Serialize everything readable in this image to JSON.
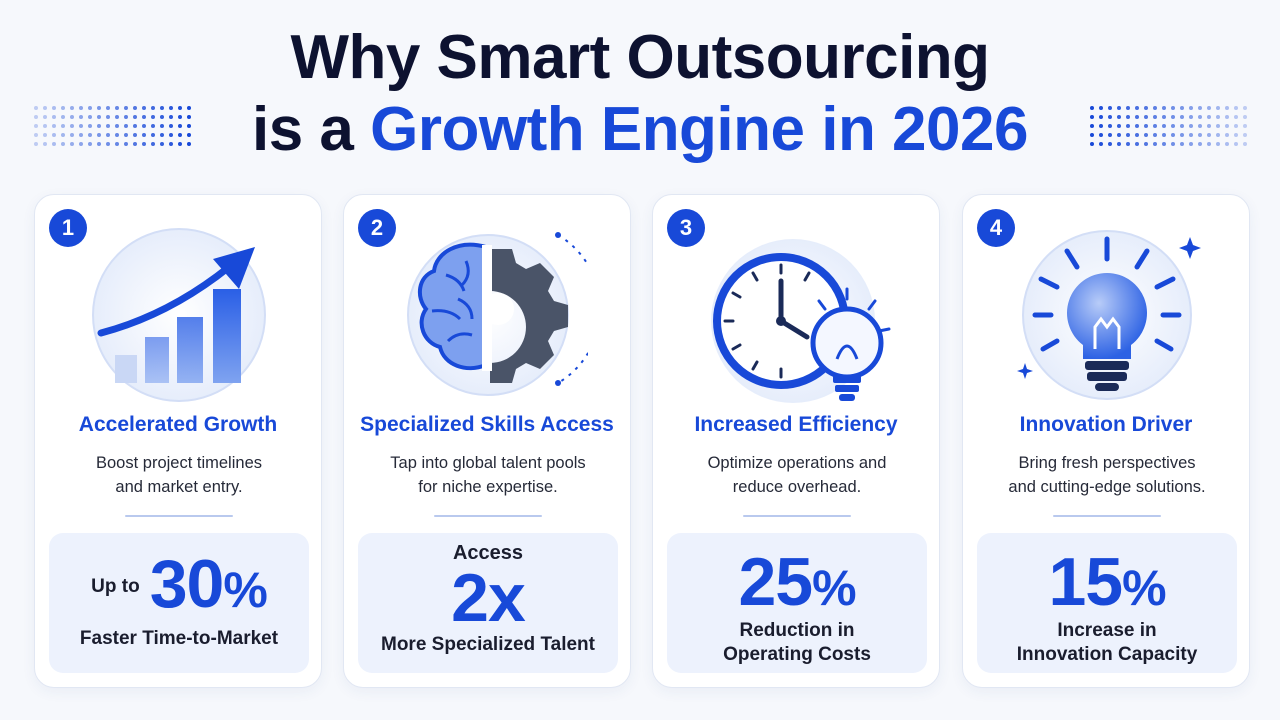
{
  "title": {
    "line1": "Why Smart Outsourcing",
    "line2_prefix": "is a",
    "line2_accent": "Growth Engine in 2026"
  },
  "colors": {
    "accent": "#1849d8",
    "dark": "#0d1230",
    "card_bg": "#ffffff",
    "stat_bg": "#edf2fd"
  },
  "cards": [
    {
      "number": "1",
      "icon": "growth-chart-arrow-icon",
      "title": "Accelerated Growth",
      "desc_line1": "Boost project timelines",
      "desc_line2": "and market entry.",
      "stat_prefix": "Up to",
      "stat_value": "30",
      "stat_unit": "%",
      "stat_label": "Faster Time-to-Market"
    },
    {
      "number": "2",
      "icon": "brain-gear-icon",
      "title": "Specialized Skills Access",
      "desc_line1": "Tap into global talent pools",
      "desc_line2": "for niche expertise.",
      "stat_prefix": "Access",
      "stat_value": "2x",
      "stat_label": "More Specialized Talent"
    },
    {
      "number": "3",
      "icon": "clock-lightbulb-icon",
      "title": "Increased Efficiency",
      "desc_line1": "Optimize operations and",
      "desc_line2": "reduce overhead.",
      "stat_value": "25",
      "stat_unit": "%",
      "stat_label_line1": "Reduction in",
      "stat_label_line2": "Operating Costs"
    },
    {
      "number": "4",
      "icon": "glowing-lightbulb-icon",
      "title": "Innovation Driver",
      "desc_line1": "Bring fresh perspectives",
      "desc_line2": "and cutting-edge solutions.",
      "stat_value": "15",
      "stat_unit": "%",
      "stat_label_line1": "Increase in",
      "stat_label_line2": "Innovation Capacity"
    }
  ]
}
